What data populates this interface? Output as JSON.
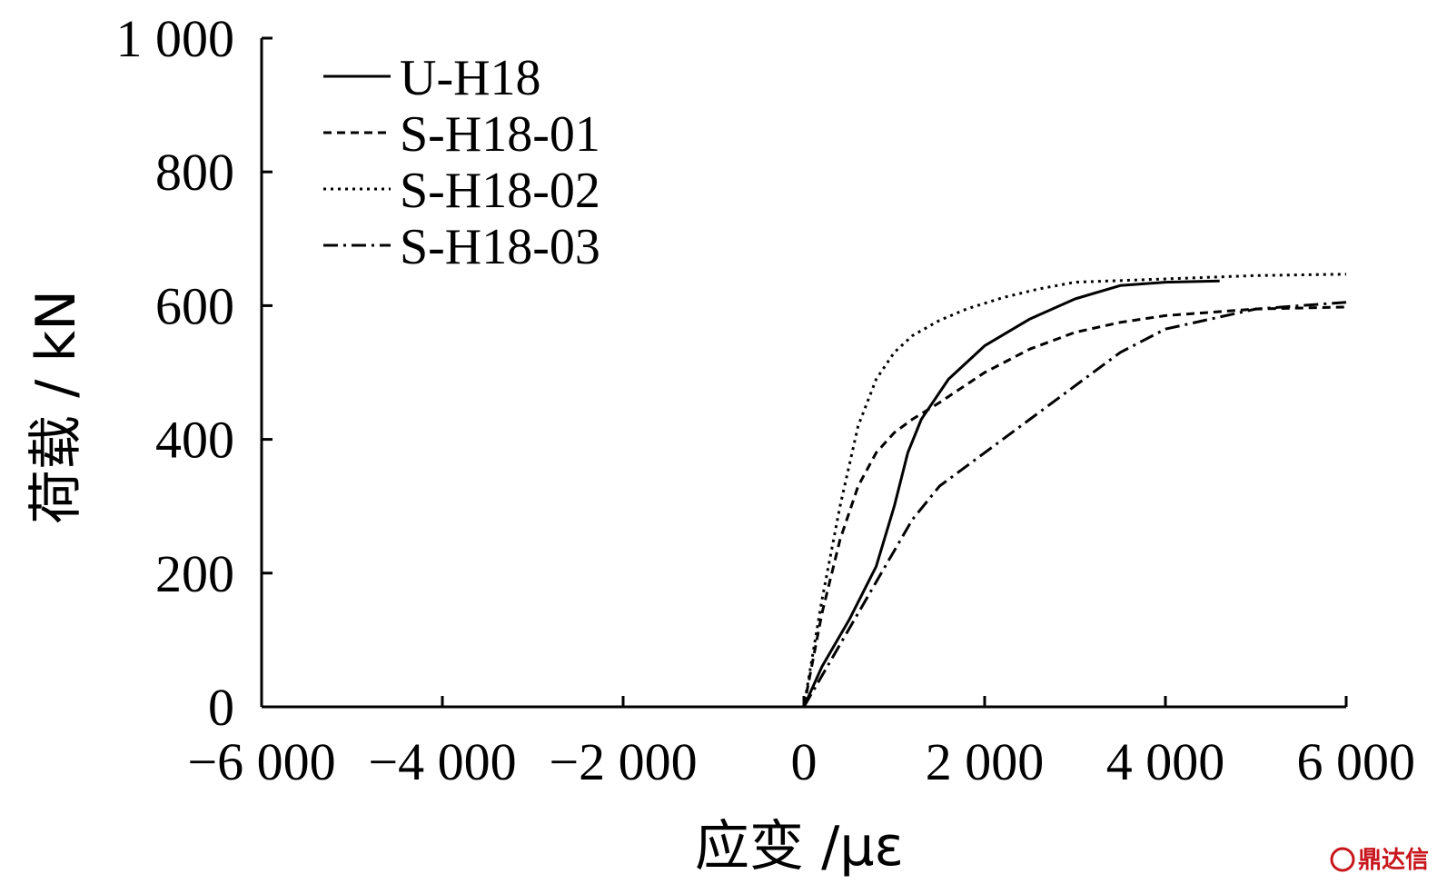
{
  "chart_data": {
    "type": "line",
    "title": "",
    "xlabel": "应变 /με",
    "ylabel": "荷载 / kN",
    "xlim": [
      -6000,
      6000
    ],
    "ylim": [
      0,
      1000
    ],
    "x_ticks": [
      -6000,
      -4000,
      -2000,
      0,
      2000,
      4000,
      6000
    ],
    "x_tick_labels": [
      "−6 000",
      "−4 000",
      "−2 000",
      "0",
      "2 000",
      "4 000",
      "6 000"
    ],
    "y_ticks": [
      0,
      200,
      400,
      600,
      800,
      1000
    ],
    "y_tick_labels": [
      "0",
      "200",
      "400",
      "600",
      "800",
      "1 000"
    ],
    "grid": false,
    "legend_position": "top-left",
    "series": [
      {
        "name": "U-H18",
        "line_style": "solid",
        "x": [
          0,
          200,
          500,
          800,
          1000,
          1150,
          1300,
          1600,
          2000,
          2500,
          3000,
          3500,
          4000,
          4600
        ],
        "y": [
          0,
          60,
          130,
          210,
          300,
          380,
          430,
          490,
          540,
          580,
          610,
          630,
          635,
          637
        ]
      },
      {
        "name": "S-H18-01",
        "line_style": "dashed",
        "x": [
          0,
          200,
          400,
          600,
          800,
          1000,
          1200,
          1500,
          2000,
          2500,
          3000,
          3500,
          4000,
          5000,
          6000
        ],
        "y": [
          0,
          140,
          250,
          330,
          380,
          410,
          430,
          455,
          500,
          535,
          560,
          575,
          585,
          595,
          598
        ]
      },
      {
        "name": "S-H18-02",
        "line_style": "dotted",
        "x": [
          0,
          200,
          400,
          600,
          800,
          1000,
          1200,
          1500,
          1800,
          2200,
          2600,
          3000,
          4000,
          5000,
          6000
        ],
        "y": [
          0,
          160,
          300,
          420,
          490,
          530,
          555,
          578,
          595,
          612,
          625,
          635,
          640,
          645,
          647
        ]
      },
      {
        "name": "S-H18-03",
        "line_style": "dash-dot",
        "x": [
          0,
          300,
          600,
          900,
          1200,
          1500,
          2000,
          2500,
          3000,
          3500,
          4000,
          5000,
          6000
        ],
        "y": [
          0,
          70,
          140,
          210,
          280,
          330,
          380,
          430,
          480,
          530,
          565,
          595,
          605
        ]
      }
    ]
  },
  "watermark": {
    "text": "鼎达信",
    "color": "#c8161d"
  }
}
